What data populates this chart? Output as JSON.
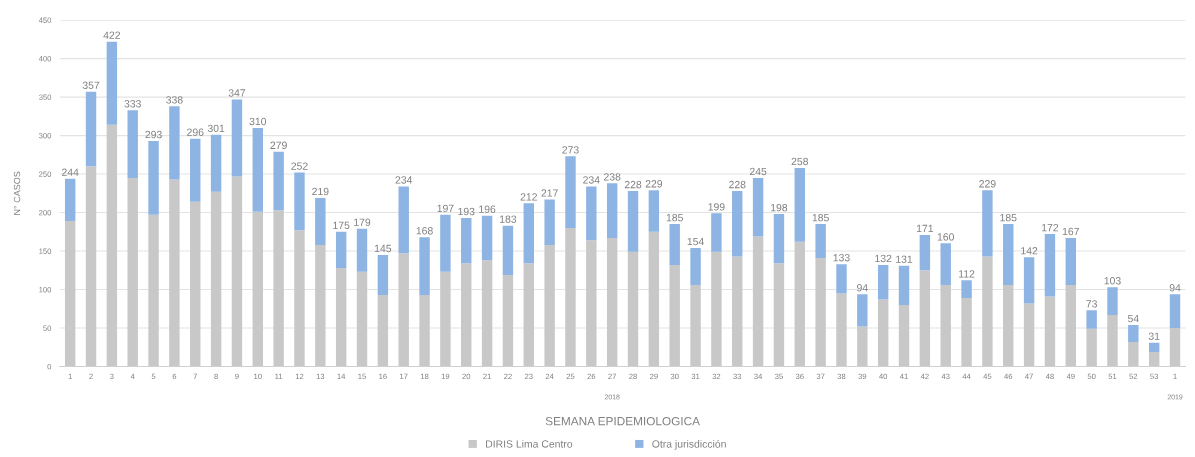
{
  "chart_data": {
    "type": "bar",
    "stacked": true,
    "categories": [
      "1",
      "2",
      "3",
      "4",
      "5",
      "6",
      "7",
      "8",
      "9",
      "10",
      "11",
      "12",
      "13",
      "14",
      "15",
      "16",
      "17",
      "18",
      "19",
      "20",
      "21",
      "22",
      "23",
      "24",
      "25",
      "26",
      "27",
      "28",
      "29",
      "30",
      "31",
      "32",
      "33",
      "34",
      "35",
      "36",
      "37",
      "38",
      "39",
      "40",
      "41",
      "42",
      "43",
      "44",
      "45",
      "46",
      "47",
      "48",
      "49",
      "50",
      "51",
      "52",
      "53",
      "1"
    ],
    "series": [
      {
        "name": "DIRIS Lima Centro",
        "color": "#c8c8c8",
        "values": [
          189,
          260,
          314,
          245,
          197,
          243,
          214,
          227,
          247,
          201,
          203,
          177,
          158,
          128,
          123,
          93,
          147,
          93,
          123,
          134,
          138,
          119,
          134,
          158,
          180,
          164,
          167,
          149,
          175,
          132,
          106,
          149,
          143,
          169,
          134,
          162,
          141,
          95,
          52,
          87,
          80,
          125,
          106,
          89,
          143,
          106,
          82,
          91,
          106,
          49,
          67,
          32,
          19,
          50
        ]
      },
      {
        "name": "Otra jurisdicción",
        "color": "#8eb4e3",
        "values": [
          55,
          97,
          108,
          88,
          96,
          95,
          82,
          74,
          100,
          109,
          76,
          75,
          61,
          47,
          56,
          52,
          87,
          75,
          74,
          59,
          58,
          64,
          78,
          59,
          93,
          70,
          71,
          79,
          54,
          53,
          48,
          50,
          85,
          76,
          64,
          96,
          44,
          38,
          42,
          45,
          51,
          46,
          54,
          23,
          86,
          79,
          60,
          81,
          61,
          24,
          36,
          22,
          12,
          44
        ]
      }
    ],
    "totals": [
      "244",
      "357",
      "422",
      "333",
      "293",
      "338",
      "296",
      "301",
      "347",
      "310",
      "279",
      "252",
      "219",
      "175",
      "179",
      "145",
      "234",
      "168",
      "197",
      "193",
      "196",
      "183",
      "212",
      "217",
      "273",
      "234",
      "238",
      "228",
      "229",
      "185",
      "154",
      "199",
      "228",
      "245",
      "198",
      "258",
      "185",
      "133",
      "94",
      "132",
      "131",
      "171",
      "160",
      "112",
      "229",
      "185",
      "142",
      "172",
      "167",
      "73",
      "103",
      "54",
      "31",
      "94"
    ],
    "ylim": [
      0,
      450
    ],
    "yticks": [
      0,
      50,
      100,
      150,
      200,
      250,
      300,
      350,
      400,
      450
    ],
    "ylabel": "N° CASOS",
    "xlabel": "SEMANA EPIDEMIOLOGICA",
    "annotations": [
      "2018",
      "2019"
    ],
    "grid": "y",
    "legend": "bottom"
  }
}
